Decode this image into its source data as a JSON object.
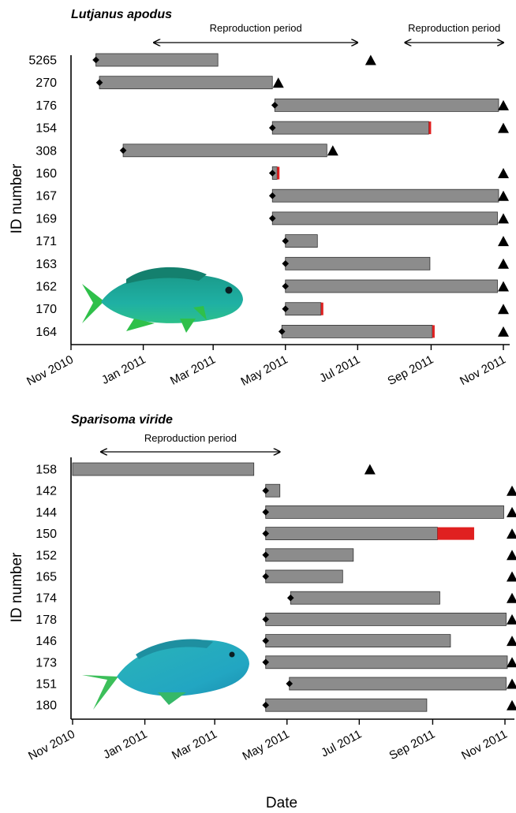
{
  "chart_data": [
    {
      "type": "gantt",
      "title": "Lutjanus apodus",
      "ylabel": "ID number",
      "xlabel": "",
      "x_ticks": [
        "Nov 2010",
        "Jan 2011",
        "Mar 2011",
        "May 2011",
        "Jul 2011",
        "Sep 2011",
        "Nov 2011"
      ],
      "xlim": [
        "2010-11-01",
        "2011-11-01"
      ],
      "reproduction_label": "Reproduction period",
      "reproduction_periods": [
        [
          "2011-01-10",
          "2011-07-01"
        ],
        [
          "2011-08-10",
          "2011-11-01"
        ]
      ],
      "fish_image": "gray-snapper-illustration",
      "legend": {
        "start_marker": "diamond",
        "end_marker": "triangle",
        "flag_color": "#e02020",
        "bar_color": "#8c8c8c"
      },
      "rows": [
        {
          "id": "5265",
          "start": "2010-11-22",
          "end": "2011-03-05",
          "end_marker": "2011-07-12",
          "flag_end": null
        },
        {
          "id": "270",
          "start": "2010-11-25",
          "end": "2011-04-20",
          "end_marker": "2011-04-25",
          "flag_end": null
        },
        {
          "id": "176",
          "start": "2011-04-22",
          "end": "2011-10-28",
          "end_marker": "2011-11-01",
          "flag_end": null
        },
        {
          "id": "154",
          "start": "2011-04-20",
          "end": "2011-08-30",
          "end_marker": "2011-11-01",
          "flag_end": "2011-09-01"
        },
        {
          "id": "308",
          "start": "2010-12-15",
          "end": "2011-06-05",
          "end_marker": "2011-06-10",
          "flag_end": null
        },
        {
          "id": "160",
          "start": "2011-04-20",
          "end": "2011-04-24",
          "end_marker": "2011-11-01",
          "flag_end": "2011-04-25"
        },
        {
          "id": "167",
          "start": "2011-04-20",
          "end": "2011-10-28",
          "end_marker": "2011-11-01",
          "flag_end": null
        },
        {
          "id": "169",
          "start": "2011-04-20",
          "end": "2011-10-27",
          "end_marker": "2011-11-01",
          "flag_end": null
        },
        {
          "id": "171",
          "start": "2011-05-01",
          "end": "2011-05-28",
          "end_marker": "2011-11-01",
          "flag_end": null
        },
        {
          "id": "163",
          "start": "2011-05-01",
          "end": "2011-08-31",
          "end_marker": "2011-11-01",
          "flag_end": null
        },
        {
          "id": "162",
          "start": "2011-05-01",
          "end": "2011-10-27",
          "end_marker": "2011-11-01",
          "flag_end": null
        },
        {
          "id": "170",
          "start": "2011-05-01",
          "end": "2011-05-31",
          "end_marker": "2011-11-01",
          "flag_end": "2011-06-01"
        },
        {
          "id": "164",
          "start": "2011-04-28",
          "end": "2011-09-02",
          "end_marker": "2011-11-01",
          "flag_end": "2011-09-04"
        }
      ]
    },
    {
      "type": "gantt",
      "title": "Sparisoma viride",
      "ylabel": "ID number",
      "xlabel": "Date",
      "x_ticks": [
        "Nov 2010",
        "Jan 2011",
        "Mar 2011",
        "May 2011",
        "Jul 2011",
        "Sep 2011",
        "Nov 2011"
      ],
      "xlim": [
        "2010-11-01",
        "2011-11-01"
      ],
      "reproduction_label": "Reproduction period",
      "reproduction_periods": [
        [
          "2010-11-25",
          "2011-04-25"
        ]
      ],
      "fish_image": "parrotfish-illustration",
      "legend": {
        "start_marker": "diamond",
        "end_marker": "triangle",
        "flag_color": "#e02020",
        "bar_color": "#8c8c8c"
      },
      "rows": [
        {
          "id": "158",
          "start": "2010-11-01",
          "end": "2011-04-03",
          "start_marker": false,
          "end_marker": "2011-07-10",
          "flag_end": null
        },
        {
          "id": "142",
          "start": "2011-04-13",
          "end": "2011-04-25",
          "end_marker": "2011-11-07",
          "flag_end": null
        },
        {
          "id": "144",
          "start": "2011-04-13",
          "end": "2011-10-31",
          "end_marker": "2011-11-07",
          "flag_end": null
        },
        {
          "id": "150",
          "start": "2011-04-13",
          "end": "2011-09-05",
          "end_marker": "2011-11-07",
          "flag_end": "2011-10-06"
        },
        {
          "id": "152",
          "start": "2011-04-13",
          "end": "2011-06-26",
          "end_marker": "2011-11-07",
          "flag_end": null
        },
        {
          "id": "165",
          "start": "2011-04-13",
          "end": "2011-06-17",
          "end_marker": "2011-11-07",
          "flag_end": null
        },
        {
          "id": "174",
          "start": "2011-05-04",
          "end": "2011-09-07",
          "end_marker": "2011-11-07",
          "flag_end": null
        },
        {
          "id": "178",
          "start": "2011-04-13",
          "end": "2011-11-02",
          "end_marker": "2011-11-07",
          "flag_end": null
        },
        {
          "id": "146",
          "start": "2011-04-13",
          "end": "2011-09-16",
          "end_marker": "2011-11-07",
          "flag_end": null
        },
        {
          "id": "173",
          "start": "2011-04-13",
          "end": "2011-11-03",
          "end_marker": "2011-11-07",
          "flag_end": null
        },
        {
          "id": "151",
          "start": "2011-05-03",
          "end": "2011-11-02",
          "end_marker": "2011-11-07",
          "flag_end": null
        },
        {
          "id": "180",
          "start": "2011-04-13",
          "end": "2011-08-27",
          "end_marker": "2011-11-07",
          "flag_end": null
        }
      ]
    }
  ]
}
